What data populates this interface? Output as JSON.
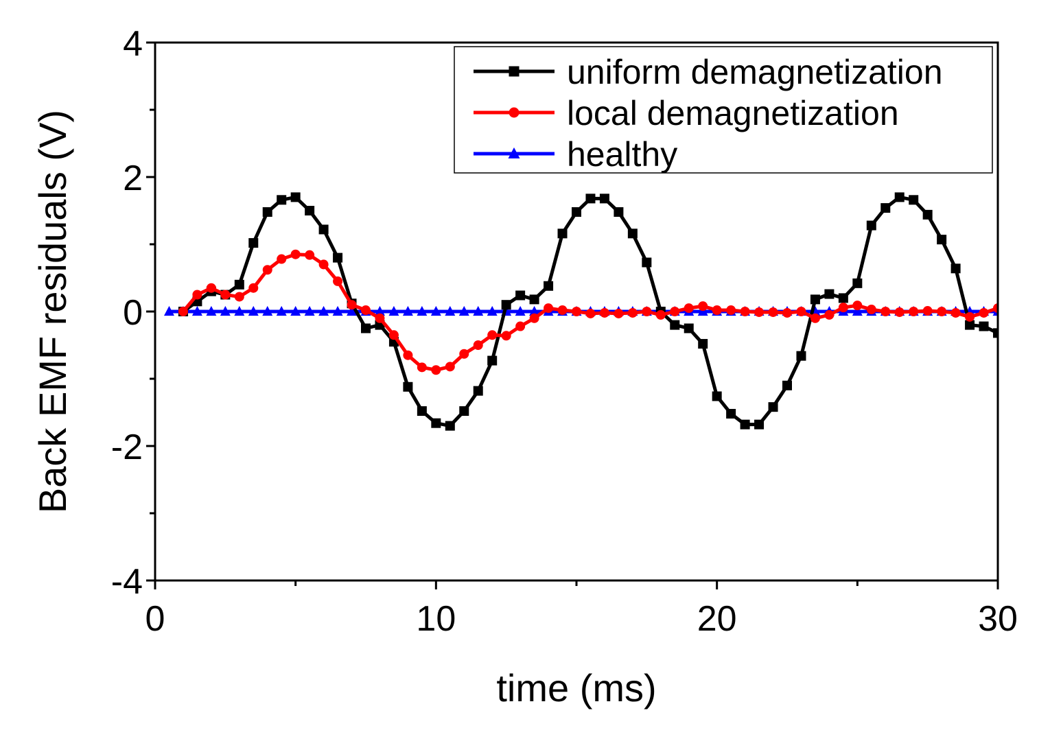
{
  "chart_data": {
    "type": "line",
    "title": "",
    "xlabel": "time (ms)",
    "ylabel": "Back EMF residuals (V)",
    "xlim": [
      0,
      30
    ],
    "ylim": [
      -4,
      4
    ],
    "xticks": [
      0,
      10,
      20,
      30
    ],
    "xtick_labels": [
      "0",
      "10",
      "20",
      "30"
    ],
    "yticks": [
      -4,
      -2,
      0,
      2,
      4
    ],
    "ytick_labels": [
      "-4",
      "-2",
      "0",
      "2",
      "4"
    ],
    "grid": false,
    "legend_position": "top-right",
    "series": [
      {
        "name": "uniform demagnetization",
        "color": "#000000",
        "marker": "square",
        "x": [
          1.0,
          1.5,
          2.0,
          2.5,
          3.0,
          3.5,
          4.0,
          4.5,
          5.0,
          5.5,
          6.0,
          6.5,
          7.0,
          7.5,
          8.0,
          8.5,
          9.0,
          9.5,
          10.0,
          10.5,
          11.0,
          11.5,
          12.0,
          12.5,
          13.0,
          13.5,
          14.0,
          14.5,
          15.0,
          15.5,
          16.0,
          16.5,
          17.0,
          17.5,
          18.0,
          18.5,
          19.0,
          19.5,
          20.0,
          20.5,
          21.0,
          21.5,
          22.0,
          22.5,
          23.0,
          23.5,
          24.0,
          24.5,
          25.0,
          25.5,
          26.0,
          26.5,
          27.0,
          27.5,
          28.0,
          28.5,
          29.0,
          29.5,
          30.0
        ],
        "values": [
          0.0,
          0.15,
          0.3,
          0.25,
          0.4,
          1.02,
          1.48,
          1.66,
          1.7,
          1.5,
          1.22,
          0.8,
          0.12,
          -0.25,
          -0.2,
          -0.45,
          -1.12,
          -1.48,
          -1.66,
          -1.7,
          -1.48,
          -1.18,
          -0.73,
          0.1,
          0.24,
          0.18,
          0.38,
          1.16,
          1.48,
          1.68,
          1.68,
          1.48,
          1.16,
          0.73,
          0.0,
          -0.2,
          -0.25,
          -0.48,
          -1.26,
          -1.52,
          -1.68,
          -1.68,
          -1.42,
          -1.1,
          -0.66,
          0.18,
          0.26,
          0.2,
          0.42,
          1.28,
          1.54,
          1.7,
          1.66,
          1.44,
          1.07,
          0.64,
          -0.2,
          -0.22,
          -0.32
        ]
      },
      {
        "name": "local demagnetization",
        "color": "#ff0000",
        "marker": "circle",
        "x": [
          1.0,
          1.5,
          2.0,
          2.5,
          3.0,
          3.5,
          4.0,
          4.5,
          5.0,
          5.5,
          6.0,
          6.5,
          7.0,
          7.5,
          8.0,
          8.5,
          9.0,
          9.5,
          10.0,
          10.5,
          11.0,
          11.5,
          12.0,
          12.5,
          13.0,
          13.5,
          14.0,
          14.5,
          15.0,
          15.5,
          16.0,
          16.5,
          17.0,
          17.5,
          18.0,
          18.5,
          19.0,
          19.5,
          20.0,
          20.5,
          21.0,
          21.5,
          22.0,
          22.5,
          23.0,
          23.5,
          24.0,
          24.5,
          25.0,
          25.5,
          26.0,
          26.5,
          27.0,
          27.5,
          28.0,
          28.5,
          29.0,
          29.5,
          30.0
        ],
        "values": [
          0.0,
          0.25,
          0.35,
          0.25,
          0.22,
          0.35,
          0.62,
          0.78,
          0.85,
          0.84,
          0.7,
          0.45,
          0.1,
          0.02,
          -0.1,
          -0.35,
          -0.65,
          -0.83,
          -0.87,
          -0.82,
          -0.63,
          -0.5,
          -0.35,
          -0.36,
          -0.22,
          -0.1,
          0.05,
          0.02,
          0.0,
          -0.03,
          -0.02,
          -0.03,
          -0.02,
          0.0,
          -0.05,
          0.0,
          0.05,
          0.08,
          0.02,
          0.02,
          0.0,
          -0.01,
          -0.01,
          -0.02,
          0.0,
          -0.1,
          -0.05,
          0.06,
          0.09,
          0.03,
          0.0,
          -0.01,
          0.0,
          0.01,
          0.0,
          -0.02,
          -0.08,
          -0.02,
          0.05
        ]
      },
      {
        "name": "healthy",
        "color": "#0000ff",
        "marker": "triangle",
        "x": [
          0.5,
          1.0,
          1.5,
          2.0,
          2.5,
          3.0,
          3.5,
          4.0,
          4.5,
          5.0,
          5.5,
          6.0,
          6.5,
          7.0,
          7.5,
          8.0,
          8.5,
          9.0,
          9.5,
          10.0,
          10.5,
          11.0,
          11.5,
          12.0,
          12.5,
          13.0,
          13.5,
          14.0,
          14.5,
          15.0,
          15.5,
          16.0,
          16.5,
          17.0,
          17.5,
          18.0,
          18.5,
          19.0,
          19.5,
          20.0,
          20.5,
          21.0,
          21.5,
          22.0,
          22.5,
          23.0,
          23.5,
          24.0,
          24.5,
          25.0,
          25.5,
          26.0,
          26.5,
          27.0,
          27.5,
          28.0,
          28.5,
          29.0,
          29.5,
          30.0
        ],
        "values": [
          0,
          0,
          0,
          0,
          0,
          0,
          0,
          0,
          0,
          0,
          0,
          0,
          0,
          0,
          0,
          0,
          0,
          0,
          0,
          0,
          0,
          0,
          0,
          0,
          0,
          0,
          0,
          0,
          0,
          0,
          0,
          0,
          0,
          0,
          0,
          0,
          0,
          0,
          0,
          0,
          0,
          0,
          0,
          0,
          0,
          0,
          0,
          0,
          0,
          0,
          0,
          0,
          0,
          0,
          0,
          0,
          0,
          0,
          0,
          0
        ]
      }
    ]
  }
}
